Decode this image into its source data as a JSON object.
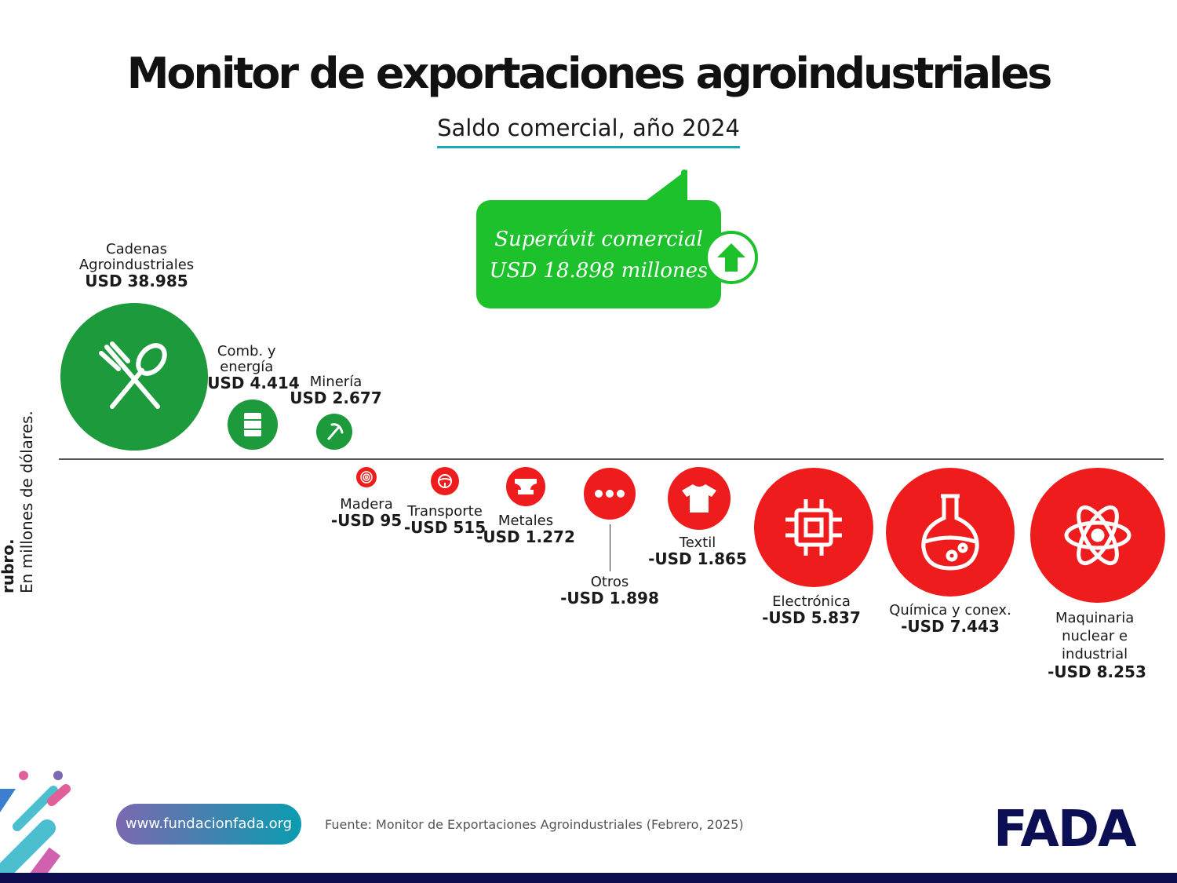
{
  "header": {
    "title": "Monitor de exportaciones agroindustriales",
    "subtitle": "Saldo comercial, año 2024"
  },
  "callout": {
    "line1": "Superávit comercial",
    "line2": "USD 18.898 millones",
    "icon": "arrow-up-icon"
  },
  "y_axis": {
    "title": "Saldo comercial por rubro.",
    "subtitle": "En millones de dólares."
  },
  "chart_data": {
    "type": "bubble",
    "title": "Saldo comercial, año 2024",
    "unit": "millones de USD",
    "colors": {
      "positive": "#1d9a3c",
      "negative": "#ee1c1c"
    },
    "items": [
      {
        "name": "Cadenas Agroindustriales",
        "label": "USD 38.985",
        "value": 38985,
        "icon": "fork-spoon-icon"
      },
      {
        "name": "Comb. y energía",
        "label": "USD 4.414",
        "value": 4414,
        "icon": "barrel-icon"
      },
      {
        "name": "Minería",
        "label": "USD 2.677",
        "value": 2677,
        "icon": "pickaxe-icon"
      },
      {
        "name": "Madera",
        "label": "-USD 95",
        "value": -95,
        "icon": "tree-rings-icon"
      },
      {
        "name": "Transporte",
        "label": "-USD 515",
        "value": -515,
        "icon": "steering-wheel-icon"
      },
      {
        "name": "Metales",
        "label": "-USD 1.272",
        "value": -1272,
        "icon": "anvil-icon"
      },
      {
        "name": "Otros",
        "label": "-USD 1.898",
        "value": -1898,
        "icon": "dots-icon"
      },
      {
        "name": "Textil",
        "label": "-USD 1.865",
        "value": -1865,
        "icon": "tshirt-icon"
      },
      {
        "name": "Electrónica",
        "label": "-USD 5.837",
        "value": -5837,
        "icon": "chip-icon"
      },
      {
        "name": "Química y conex.",
        "label": "-USD 7.443",
        "value": -7443,
        "icon": "flask-icon"
      },
      {
        "name": "Maquinaria nuclear e industrial",
        "label": "-USD 8.253",
        "value": -8253,
        "icon": "atom-icon"
      }
    ]
  },
  "footer": {
    "url": "www.fundacionfada.org",
    "source": "Fuente: Monitor de Exportaciones Agroindustriales (Febrero, 2025)",
    "logo": "FADA"
  }
}
